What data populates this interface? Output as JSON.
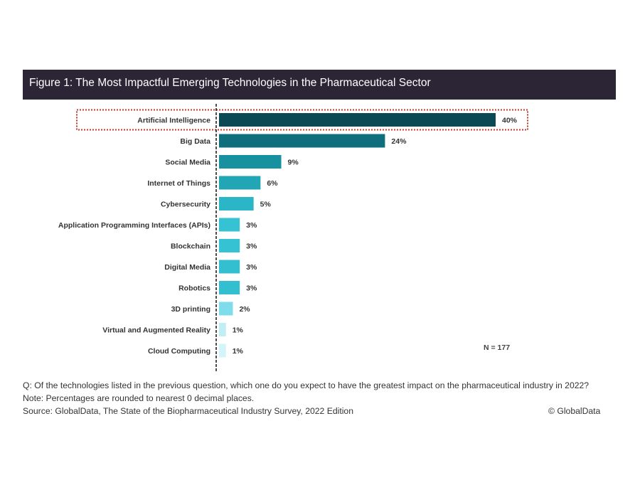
{
  "figure_title": "Figure 1: The Most Impactful Emerging Technologies in the Pharmaceutical Sector",
  "chart_data": {
    "type": "bar",
    "orientation": "horizontal",
    "title": "Figure 1: The Most Impactful Emerging Technologies in the Pharmaceutical Sector",
    "xlabel": "",
    "ylabel": "",
    "unit": "%",
    "xlim": [
      0,
      40
    ],
    "grid": false,
    "legend": "none",
    "highlighted_category": "Artificial Intelligence",
    "categories": [
      "Artificial Intelligence",
      "Big Data",
      "Social Media",
      "Internet of Things",
      "Cybersecurity",
      "Application Programming Interfaces (APIs)",
      "Blockchain",
      "Digital Media",
      "Robotics",
      "3D printing",
      "Virtual and Augmented Reality",
      "Cloud Computing"
    ],
    "values": [
      40,
      24,
      9,
      6,
      5,
      3,
      3,
      3,
      3,
      2,
      1,
      1
    ],
    "value_labels": [
      "40%",
      "24%",
      "9%",
      "6%",
      "5%",
      "3%",
      "3%",
      "3%",
      "3%",
      "2%",
      "1%",
      "1%"
    ],
    "bar_colors": [
      "#0b4a55",
      "#0f6f7c",
      "#17919f",
      "#22a6b6",
      "#2bb6c8",
      "#35c3d4",
      "#35c3d4",
      "#33bfd0",
      "#33bfd0",
      "#7fdcea",
      "#bfeef5",
      "#d3f4f8"
    ],
    "highlight_color": "#c0392b",
    "sample_size": "N = 177"
  },
  "footer": {
    "question": "Q: Of the technologies listed in the previous question, which one do you expect to have the greatest impact on the pharmaceutical industry in 2022?",
    "note": "Note: Percentages are rounded to nearest 0 decimal places.",
    "source": "Source: GlobalData, The State of the Biopharmaceutical Industry Survey, 2022 Edition",
    "copyright": "© GlobalData"
  }
}
